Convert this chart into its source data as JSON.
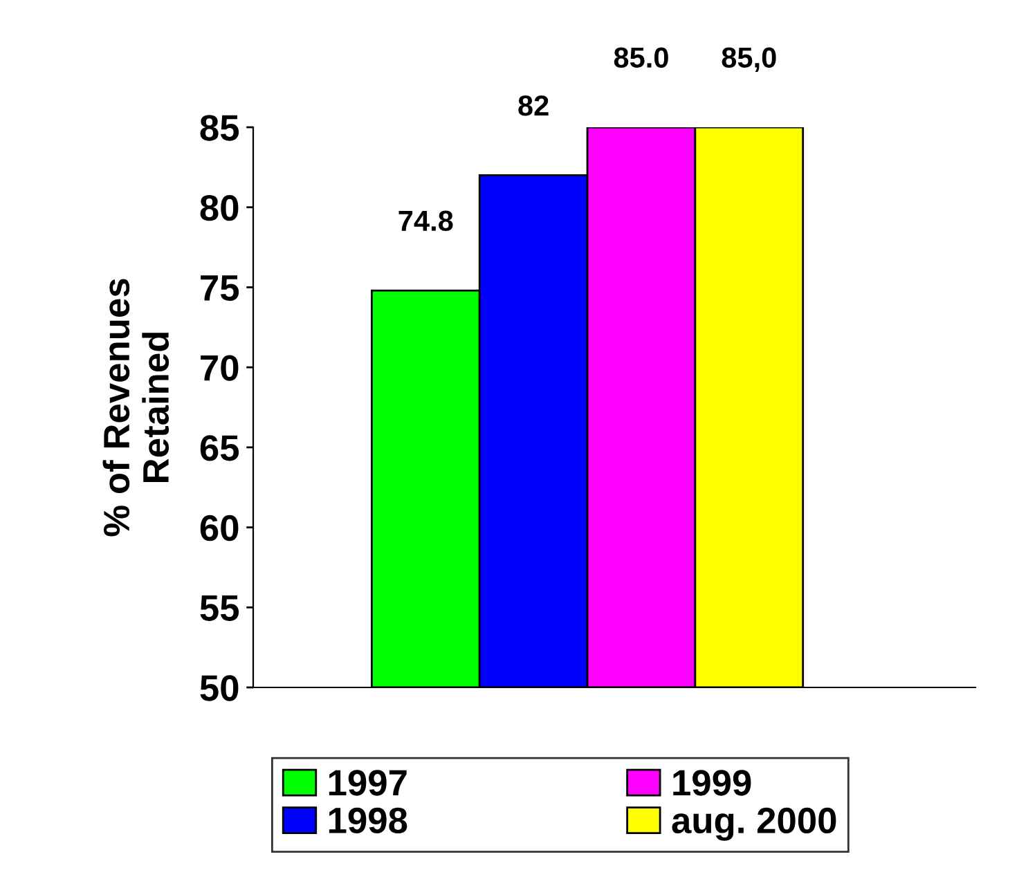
{
  "chart_data": {
    "type": "bar",
    "categories": [
      null
    ],
    "ylabel": "% of Revenues\nRetained",
    "ylim": [
      50,
      85
    ],
    "yticks": [
      50,
      55,
      60,
      65,
      70,
      75,
      80,
      85
    ],
    "grid": false,
    "legend": "bottom",
    "series": [
      {
        "name": "1997",
        "color": "#00ff00",
        "values": [
          74.8
        ],
        "value_labels": [
          "74.8"
        ]
      },
      {
        "name": "1998",
        "color": "#0000ff",
        "values": [
          82
        ],
        "value_labels": [
          "82"
        ]
      },
      {
        "name": "1999",
        "color": "#ff00ff",
        "values": [
          85.0
        ],
        "value_labels": [
          "85.0"
        ]
      },
      {
        "name": "aug. 2000",
        "color": "#ffff00",
        "values": [
          85.0
        ],
        "value_labels": [
          "85,0"
        ]
      }
    ]
  }
}
